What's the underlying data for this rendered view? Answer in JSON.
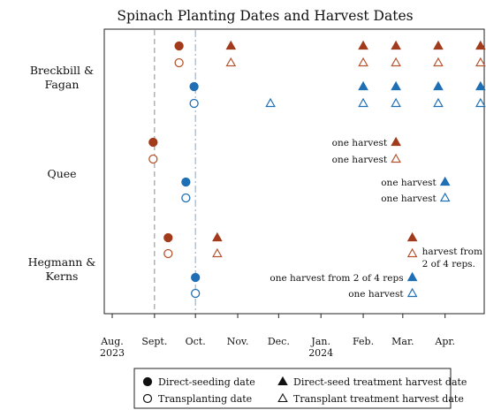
{
  "chart_data": {
    "type": "scatter",
    "title": "Spinach Planting Dates and Harvest Dates",
    "xlabel": "",
    "ylabel": "",
    "colors": {
      "direct_seed": "#a23b1c",
      "transplant_red": "#b5532f",
      "transplant_blue": "#1f6fb5"
    },
    "x_ticks": [
      {
        "date": "2023-08-01",
        "lines": [
          "Aug.",
          "2023"
        ]
      },
      {
        "date": "2023-09-01",
        "lines": [
          "Sept."
        ]
      },
      {
        "date": "2023-10-01",
        "lines": [
          "Oct."
        ]
      },
      {
        "date": "2023-11-01",
        "lines": [
          "Nov."
        ]
      },
      {
        "date": "2023-12-01",
        "lines": [
          "Dec."
        ]
      },
      {
        "date": "2024-01-01",
        "lines": [
          "Jan.",
          "2024"
        ]
      },
      {
        "date": "2024-02-01",
        "lines": [
          "Feb."
        ]
      },
      {
        "date": "2024-03-01",
        "lines": [
          "Mar."
        ]
      },
      {
        "date": "2024-04-01",
        "lines": [
          "Apr."
        ]
      }
    ],
    "xlim": [
      "2023-08-01",
      "2024-05-01"
    ],
    "reference_lines": [
      {
        "date": "2023-09-01",
        "style": "dashed"
      },
      {
        "date": "2023-10-01",
        "style": "dash-dot"
      }
    ],
    "groups": [
      {
        "lines": [
          "Breckbill &",
          "Fagan"
        ]
      },
      {
        "lines": [
          "Quee"
        ]
      },
      {
        "lines": [
          "Hegmann &",
          "Kerns"
        ]
      }
    ],
    "rows": [
      {
        "group": 0,
        "series": "Direct-seeded (red)",
        "color": "#a23b1c",
        "planting": {
          "date": "2023-09-19",
          "type": "direct"
        },
        "harvests": [
          "2023-10-27",
          "2024-02-01",
          "2024-02-25",
          "2024-03-27",
          "2024-04-27"
        ]
      },
      {
        "group": 0,
        "series": "Transplanted (red)",
        "color": "#b5532f",
        "planting": {
          "date": "2023-09-19",
          "type": "transplant"
        },
        "harvests": [
          "2023-10-27",
          "2024-02-01",
          "2024-02-25",
          "2024-03-27",
          "2024-04-27"
        ]
      },
      {
        "group": 0,
        "series": "Direct-seeded (blue)",
        "color": "#1f6fb5",
        "planting": {
          "date": "2023-09-30",
          "type": "direct"
        },
        "harvests": [
          "2024-02-01",
          "2024-02-25",
          "2024-03-27",
          "2024-04-27"
        ]
      },
      {
        "group": 0,
        "series": "Transplanted (blue)",
        "color": "#1f6fb5",
        "planting": {
          "date": "2023-09-30",
          "type": "transplant"
        },
        "harvests": [
          "2023-11-25",
          "2024-02-01",
          "2024-02-25",
          "2024-03-27",
          "2024-04-27"
        ]
      },
      {
        "group": 1,
        "series": "Direct-seeded (red)",
        "color": "#a23b1c",
        "planting": {
          "date": "2023-08-31",
          "type": "direct"
        },
        "harvests": [
          "2024-02-25"
        ]
      },
      {
        "group": 1,
        "series": "Transplanted (red)",
        "color": "#b5532f",
        "planting": {
          "date": "2023-08-31",
          "type": "transplant"
        },
        "harvests": [
          "2024-02-25"
        ]
      },
      {
        "group": 1,
        "series": "Direct-seeded (blue)",
        "color": "#1f6fb5",
        "planting": {
          "date": "2023-09-24",
          "type": "direct"
        },
        "harvests": [
          "2024-04-01"
        ]
      },
      {
        "group": 1,
        "series": "Transplanted (blue)",
        "color": "#1f6fb5",
        "planting": {
          "date": "2023-09-24",
          "type": "transplant"
        },
        "harvests": [
          "2024-04-01"
        ]
      },
      {
        "group": 2,
        "series": "Direct-seeded (red)",
        "color": "#a23b1c",
        "planting": {
          "date": "2023-09-11",
          "type": "direct"
        },
        "harvests": [
          "2023-10-17",
          "2024-03-08"
        ]
      },
      {
        "group": 2,
        "series": "Transplanted (red)",
        "color": "#b5532f",
        "planting": {
          "date": "2023-09-11",
          "type": "transplant"
        },
        "harvests": [
          "2023-10-17",
          "2024-03-08"
        ]
      },
      {
        "group": 2,
        "series": "Direct-seeded (blue)",
        "color": "#1f6fb5",
        "planting": {
          "date": "2023-10-01",
          "type": "direct"
        },
        "harvests": [
          "2024-03-08"
        ]
      },
      {
        "group": 2,
        "series": "Transplanted (blue)",
        "color": "#1f6fb5",
        "planting": {
          "date": "2023-10-01",
          "type": "transplant"
        },
        "harvests": [
          "2024-03-08"
        ]
      }
    ],
    "annotations": [
      {
        "row": 4,
        "lines": [
          "one harvest"
        ]
      },
      {
        "row": 5,
        "lines": [
          "one harvest"
        ]
      },
      {
        "row": 6,
        "lines": [
          "one harvest"
        ]
      },
      {
        "row": 7,
        "lines": [
          "one harvest"
        ]
      },
      {
        "row": 9,
        "lines": [
          "harvest from",
          "2 of 4 reps."
        ],
        "side": "right"
      },
      {
        "row": 10,
        "lines": [
          "one harvest from 2 of 4 reps"
        ]
      },
      {
        "row": 11,
        "lines": [
          "one harvest"
        ]
      }
    ],
    "legend": {
      "placement": "bottom",
      "entries": [
        {
          "label": "Direct-seeding date",
          "symbol": "filled-circle"
        },
        {
          "label": "Transplanting date",
          "symbol": "open-circle"
        },
        {
          "label": "Direct-seed treatment harvest date",
          "symbol": "filled-triangle"
        },
        {
          "label": "Transplant treatment harvest date",
          "symbol": "open-triangle"
        }
      ]
    },
    "grid": false
  }
}
